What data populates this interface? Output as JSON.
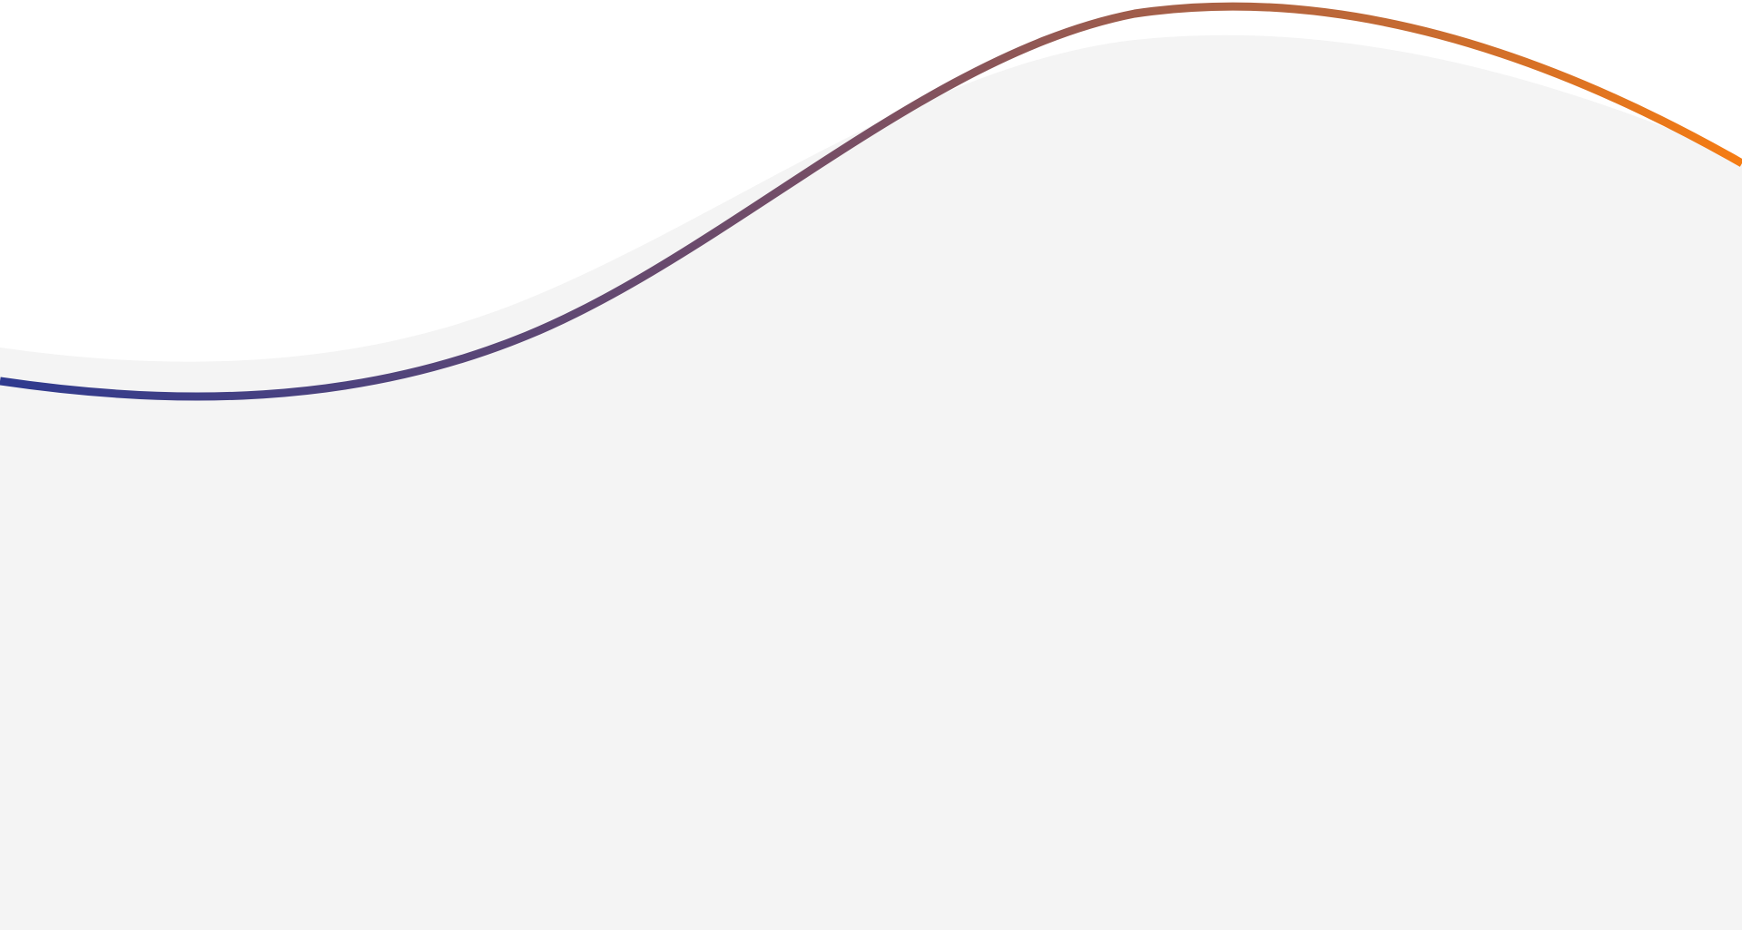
{
  "colors": {
    "background": "#ffffff",
    "wave_fill": "#f4f4f4",
    "stroke_start": "#2f3a8f",
    "stroke_mid": "#7a4f63",
    "stroke_end": "#f57c13"
  },
  "elements": {
    "background_shape": "wave-fill",
    "decorative_line": "gradient-wave-stroke"
  }
}
